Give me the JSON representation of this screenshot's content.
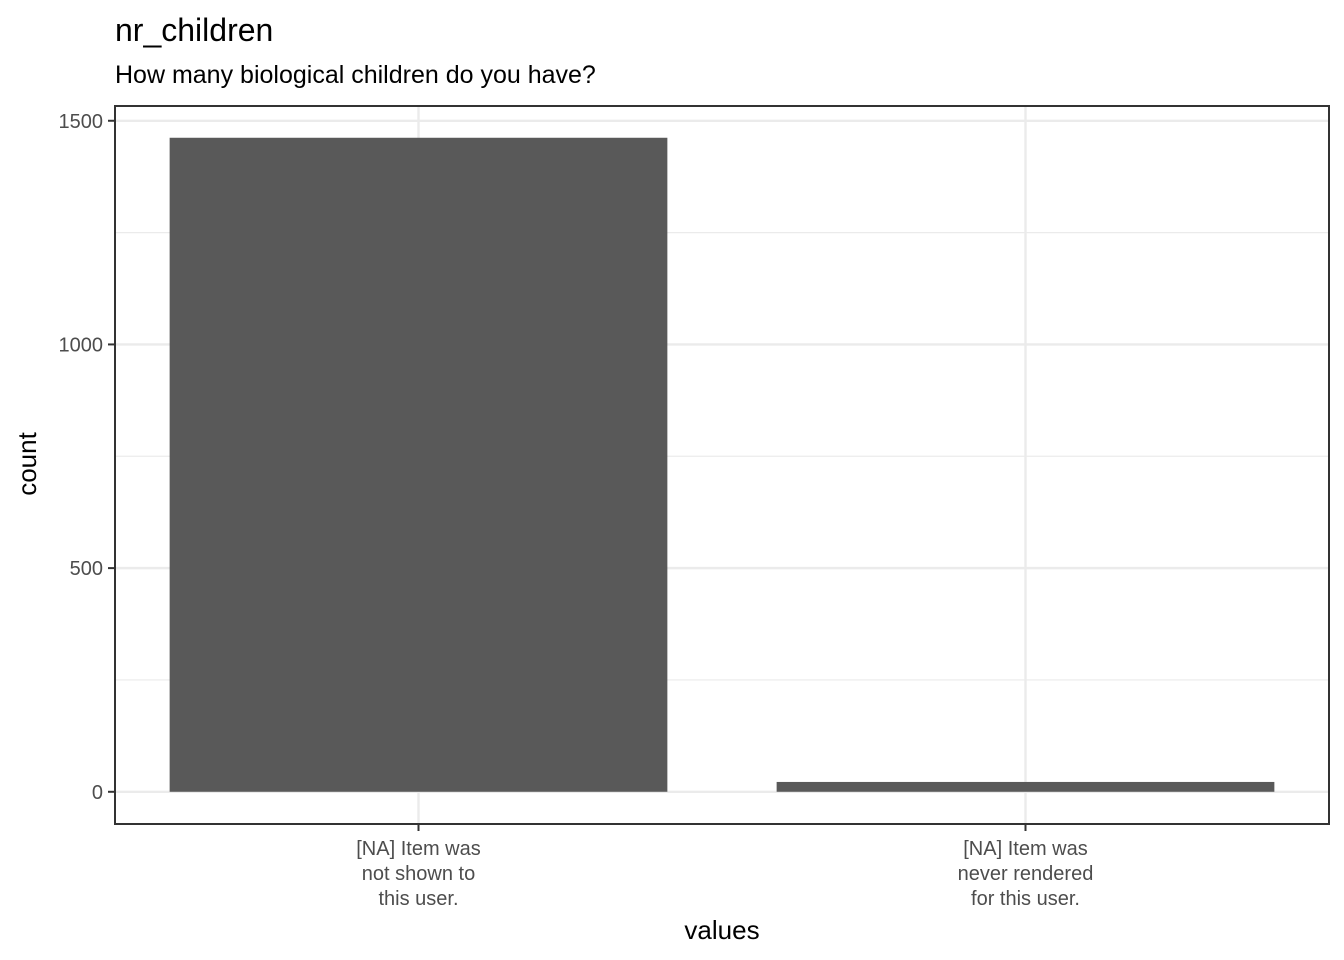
{
  "chart_data": {
    "type": "bar",
    "title": "nr_children",
    "subtitle": "How many biological children do you have?",
    "xlabel": "values",
    "ylabel": "count",
    "categories": [
      [
        "[NA] Item was",
        "not shown to",
        "this user."
      ],
      [
        "[NA] Item was",
        "never rendered",
        "for this user."
      ]
    ],
    "values": [
      1462,
      22
    ],
    "ylim": [
      -72,
      1533
    ],
    "yticks": [
      0,
      500,
      1000,
      1500
    ],
    "ytick_labels": [
      "0",
      "500",
      "1000",
      "1500"
    ],
    "grid": true,
    "colors": {
      "bar": "#595959",
      "grid": "#ebebeb",
      "panel_border": "#333333"
    }
  }
}
